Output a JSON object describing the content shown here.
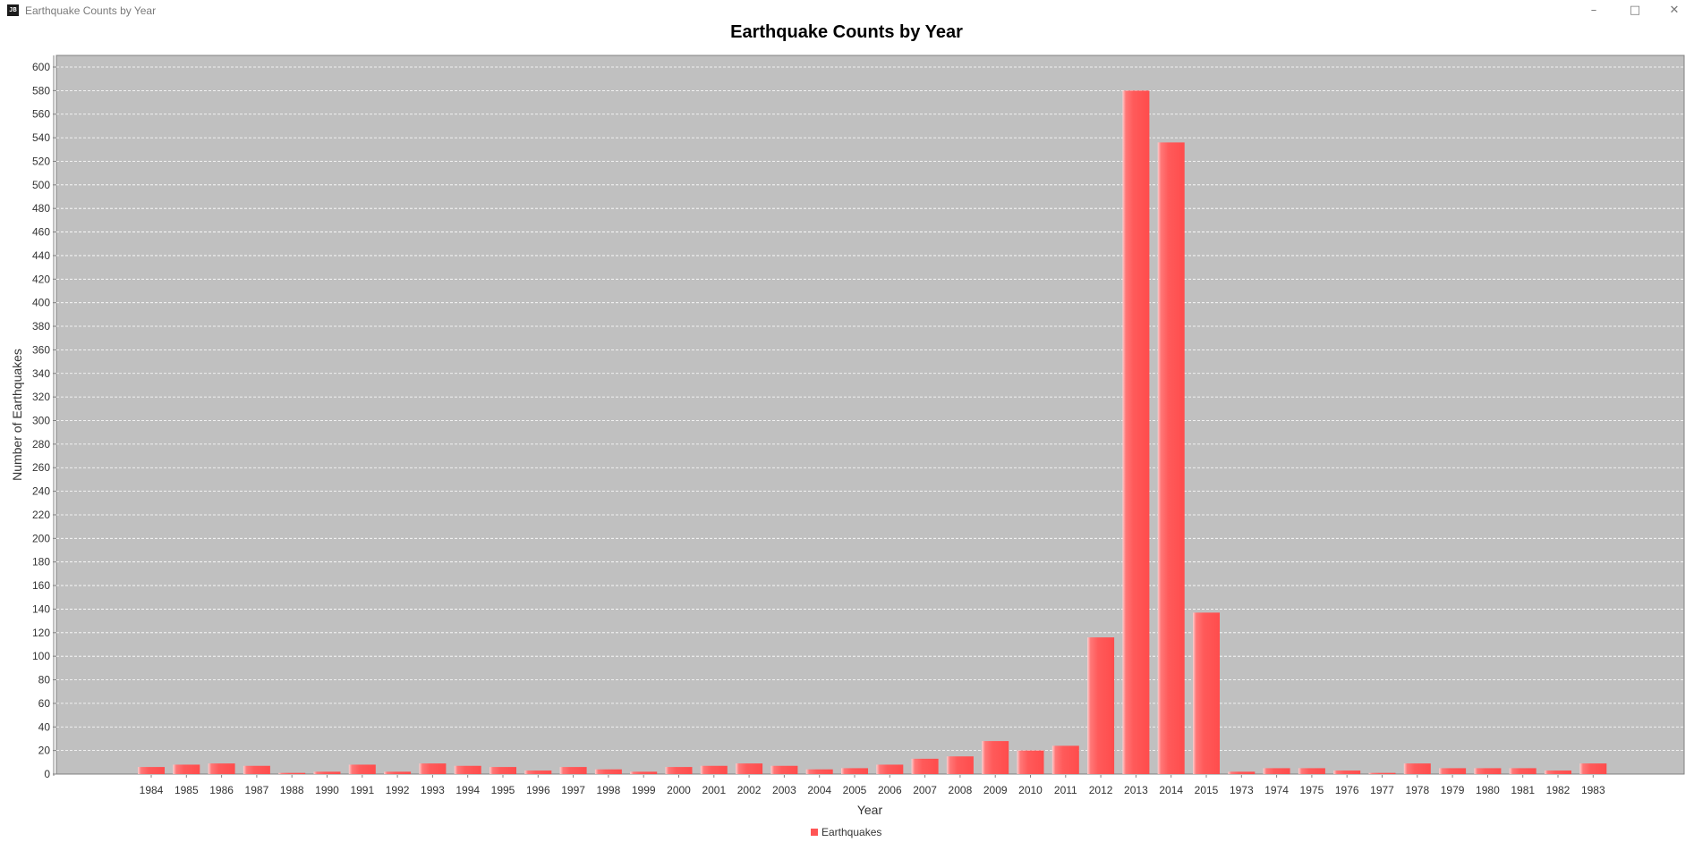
{
  "window": {
    "title": "Earthquake Counts by Year",
    "icon_text": "JB",
    "controls": {
      "minimize": "–",
      "maximize": "□",
      "close": "✕"
    }
  },
  "colors": {
    "plot_background": "#c0c0c0",
    "bar": "#ff5555",
    "gridline": "#ffffff"
  },
  "chart_data": {
    "type": "bar",
    "title": "Earthquake Counts by Year",
    "xlabel": "Year",
    "ylabel": "Number of Earthquakes",
    "ylim": [
      0,
      600
    ],
    "yticks": [
      0,
      20,
      40,
      60,
      80,
      100,
      120,
      140,
      160,
      180,
      200,
      220,
      240,
      260,
      280,
      300,
      320,
      340,
      360,
      380,
      400,
      420,
      440,
      460,
      480,
      500,
      520,
      540,
      560,
      580,
      600
    ],
    "grid": true,
    "legend_position": "bottom-center",
    "categories": [
      "1984",
      "1985",
      "1986",
      "1987",
      "1988",
      "1990",
      "1991",
      "1992",
      "1993",
      "1994",
      "1995",
      "1996",
      "1997",
      "1998",
      "1999",
      "2000",
      "2001",
      "2002",
      "2003",
      "2004",
      "2005",
      "2006",
      "2007",
      "2008",
      "2009",
      "2010",
      "2011",
      "2012",
      "2013",
      "2014",
      "2015",
      "1973",
      "1974",
      "1975",
      "1976",
      "1977",
      "1978",
      "1979",
      "1980",
      "1981",
      "1982",
      "1983"
    ],
    "series": [
      {
        "name": "Earthquakes",
        "values": [
          6,
          8,
          9,
          7,
          1,
          2,
          8,
          2,
          9,
          7,
          6,
          3,
          6,
          4,
          2,
          6,
          7,
          9,
          7,
          4,
          5,
          8,
          13,
          15,
          28,
          20,
          24,
          116,
          580,
          536,
          137,
          2,
          5,
          5,
          3,
          1,
          9,
          5,
          5,
          5,
          3,
          9
        ]
      }
    ]
  }
}
